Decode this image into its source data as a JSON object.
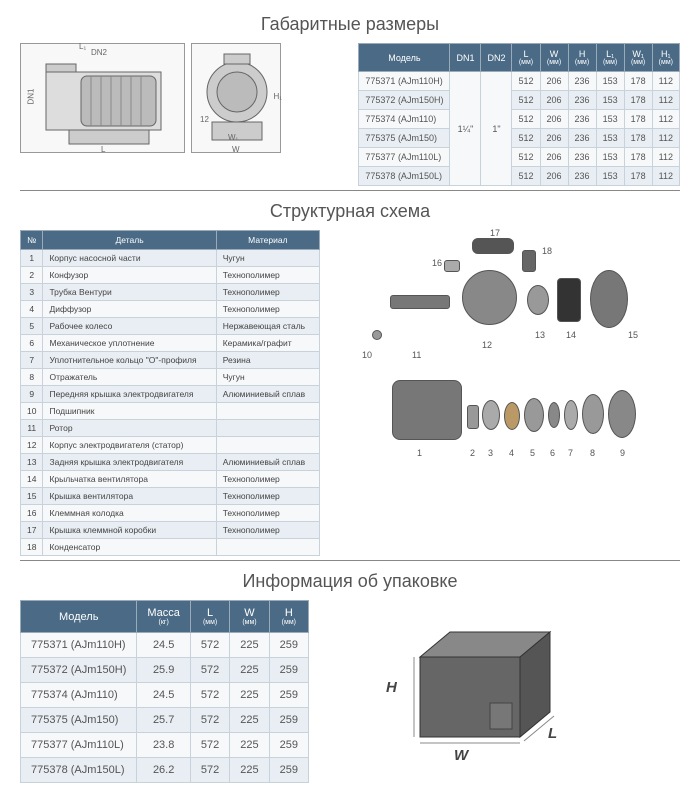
{
  "sec1": {
    "title": "Габаритные размеры",
    "dims_side": {
      "L": "L",
      "L1": "L₁",
      "DN1": "DN1",
      "DN2": "DN2"
    },
    "dims_front": {
      "W": "W",
      "W1": "W₁",
      "H": "H",
      "H1": "H₁",
      "corner": "12"
    },
    "table": {
      "headers": [
        {
          "t": "Модель",
          "sub": ""
        },
        {
          "t": "DN1",
          "sub": ""
        },
        {
          "t": "DN2",
          "sub": ""
        },
        {
          "t": "L",
          "sub": "(мм)"
        },
        {
          "t": "W",
          "sub": "(мм)"
        },
        {
          "t": "H",
          "sub": "(мм)"
        },
        {
          "t": "L₁",
          "sub": "(мм)"
        },
        {
          "t": "W₁",
          "sub": "(мм)"
        },
        {
          "t": "H₁",
          "sub": "(мм)"
        }
      ],
      "dn1": "1¼\"",
      "dn2": "1\"",
      "rows": [
        {
          "model": "775371 (AJm110H)",
          "v": [
            "512",
            "206",
            "236",
            "153",
            "178",
            "112"
          ]
        },
        {
          "model": "775372 (AJm150H)",
          "v": [
            "512",
            "206",
            "236",
            "153",
            "178",
            "112"
          ]
        },
        {
          "model": "775374 (AJm110)",
          "v": [
            "512",
            "206",
            "236",
            "153",
            "178",
            "112"
          ]
        },
        {
          "model": "775375 (AJm150)",
          "v": [
            "512",
            "206",
            "236",
            "153",
            "178",
            "112"
          ]
        },
        {
          "model": "775377 (AJm110L)",
          "v": [
            "512",
            "206",
            "236",
            "153",
            "178",
            "112"
          ]
        },
        {
          "model": "775378 (AJm150L)",
          "v": [
            "512",
            "206",
            "236",
            "153",
            "178",
            "112"
          ]
        }
      ]
    }
  },
  "sec2": {
    "title": "Структурная схема",
    "parts": {
      "headers": [
        "№",
        "Деталь",
        "Материал"
      ],
      "rows": [
        [
          "1",
          "Корпус насосной части",
          "Чугун"
        ],
        [
          "2",
          "Конфузор",
          "Технополимер"
        ],
        [
          "3",
          "Трубка Вентури",
          "Технополимер"
        ],
        [
          "4",
          "Диффузор",
          "Технополимер"
        ],
        [
          "5",
          "Рабочее колесо",
          "Нержавеющая сталь"
        ],
        [
          "6",
          "Механическое уплотнение",
          "Керамика/графит"
        ],
        [
          "7",
          "Уплотнительное кольцо \"О\"-профиля",
          "Резина"
        ],
        [
          "8",
          "Отражатель",
          "Чугун"
        ],
        [
          "9",
          "Передняя крышка электродвигателя",
          "Алюминиевый сплав"
        ],
        [
          "10",
          "Подшипник",
          ""
        ],
        [
          "11",
          "Ротор",
          ""
        ],
        [
          "12",
          "Корпус электродвигателя (статор)",
          ""
        ],
        [
          "13",
          "Задняя крышка электродвигателя",
          "Алюминиевый сплав"
        ],
        [
          "14",
          "Крыльчатка вентилятора",
          "Технополимер"
        ],
        [
          "15",
          "Крышка вентилятора",
          "Технополимер"
        ],
        [
          "16",
          "Клеммная колодка",
          "Технополимер"
        ],
        [
          "17",
          "Крышка клеммной коробки",
          "Технополимер"
        ],
        [
          "18",
          "Конденсатор",
          ""
        ]
      ]
    },
    "callouts": [
      "1",
      "2",
      "3",
      "4",
      "5",
      "6",
      "7",
      "8",
      "9",
      "10",
      "11",
      "12",
      "13",
      "14",
      "15",
      "16",
      "17",
      "18"
    ]
  },
  "sec3": {
    "title": "Информация об упаковке",
    "table": {
      "headers": [
        {
          "t": "Модель",
          "sub": ""
        },
        {
          "t": "Масса",
          "sub": "(кг)"
        },
        {
          "t": "L",
          "sub": "(мм)"
        },
        {
          "t": "W",
          "sub": "(мм)"
        },
        {
          "t": "H",
          "sub": "(мм)"
        }
      ],
      "rows": [
        {
          "model": "775371 (AJm110H)",
          "v": [
            "24.5",
            "572",
            "225",
            "259"
          ]
        },
        {
          "model": "775372 (AJm150H)",
          "v": [
            "25.9",
            "572",
            "225",
            "259"
          ]
        },
        {
          "model": "775374 (AJm110)",
          "v": [
            "24.5",
            "572",
            "225",
            "259"
          ]
        },
        {
          "model": "775375 (AJm150)",
          "v": [
            "25.7",
            "572",
            "225",
            "259"
          ]
        },
        {
          "model": "775377 (AJm110L)",
          "v": [
            "23.8",
            "572",
            "225",
            "259"
          ]
        },
        {
          "model": "775378 (AJm150L)",
          "v": [
            "26.2",
            "572",
            "225",
            "259"
          ]
        }
      ]
    },
    "box_labels": {
      "H": "H",
      "W": "W",
      "L": "L"
    }
  },
  "colors": {
    "header_bg": "#4a6a85",
    "row_alt": "#e8eef3",
    "row_base": "#f6f8fa",
    "border": "#c8d2da",
    "text": "#555555"
  }
}
